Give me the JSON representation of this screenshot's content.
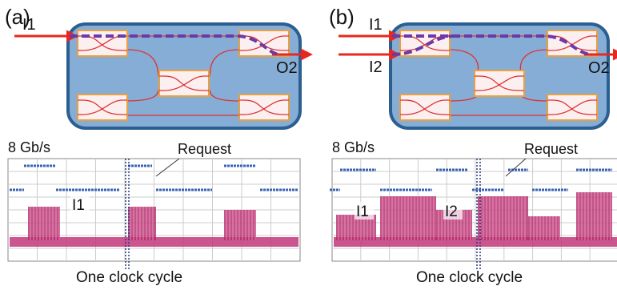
{
  "panels": [
    {
      "label": "(a)",
      "inputs": [
        "I1"
      ],
      "output": "O2",
      "scope": {
        "rate": "8 Gb/s",
        "request": "Request",
        "traces": [
          "I1"
        ],
        "clock": "One clock cycle"
      }
    },
    {
      "label": "(b)",
      "inputs": [
        "I1",
        "I2"
      ],
      "output": "O2",
      "scope": {
        "rate": "8 Gb/s",
        "request": "Request",
        "traces": [
          "I1",
          "I2"
        ],
        "clock": "One clock cycle"
      }
    }
  ]
}
